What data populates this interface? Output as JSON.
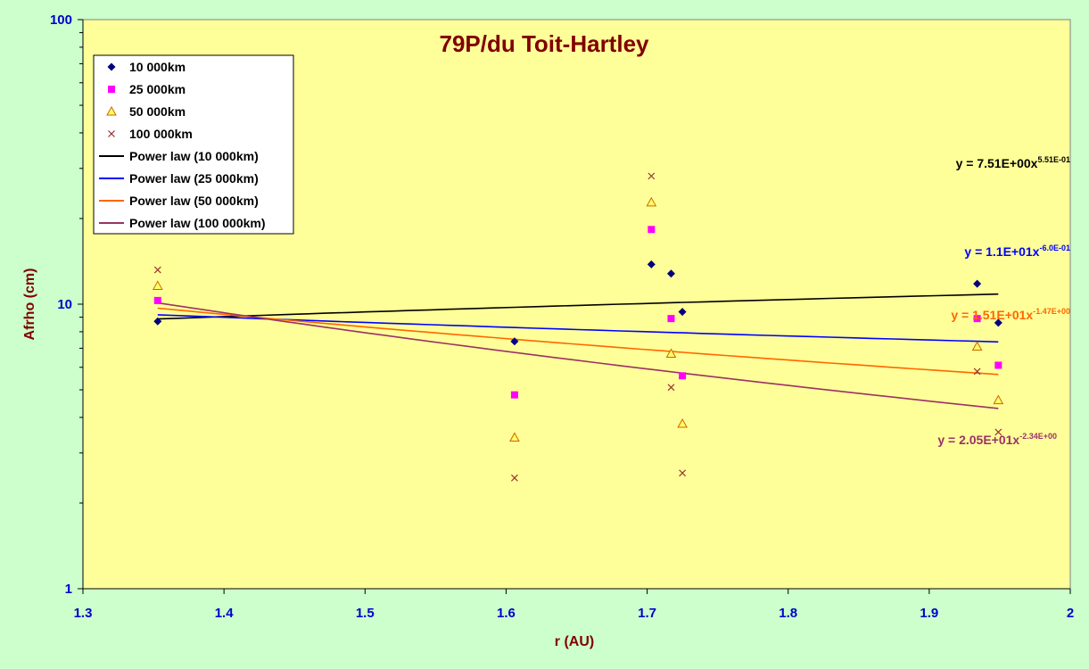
{
  "chart_data": {
    "type": "scatter",
    "title": "79P/du Toit-Hartley",
    "xlabel": "r (AU)",
    "ylabel": "Afrho (cm)",
    "xlim": [
      1.3,
      2.0
    ],
    "ylim": [
      1,
      100
    ],
    "y_scale": "log",
    "x_ticks": [
      "1.3",
      "1.4",
      "1.5",
      "1.6",
      "1.7",
      "1.8",
      "1.9",
      "2"
    ],
    "y_ticks": [
      "1",
      "10",
      "100"
    ],
    "grid": false,
    "legend_position": "top-left",
    "plot_background": "#ffff99",
    "page_background": "#ccffcc",
    "series": [
      {
        "name": "10 000km",
        "marker": "diamond",
        "color": "#000080",
        "points": [
          [
            1.353,
            8.7
          ],
          [
            1.606,
            7.4
          ],
          [
            1.703,
            13.8
          ],
          [
            1.717,
            12.8
          ],
          [
            1.725,
            9.4
          ],
          [
            1.934,
            11.8
          ],
          [
            1.949,
            8.6
          ]
        ]
      },
      {
        "name": "25 000km",
        "marker": "square",
        "color": "#ff00ff",
        "points": [
          [
            1.353,
            10.3
          ],
          [
            1.606,
            4.8
          ],
          [
            1.703,
            18.3
          ],
          [
            1.717,
            8.9
          ],
          [
            1.725,
            5.6
          ],
          [
            1.934,
            8.9
          ],
          [
            1.949,
            6.1
          ]
        ]
      },
      {
        "name": "50 000km",
        "marker": "triangle",
        "color": "#cc6600",
        "fill": "#ffff66",
        "points": [
          [
            1.353,
            11.6
          ],
          [
            1.606,
            3.4
          ],
          [
            1.703,
            22.8
          ],
          [
            1.717,
            6.7
          ],
          [
            1.725,
            3.8
          ],
          [
            1.934,
            7.1
          ],
          [
            1.949,
            4.6
          ]
        ]
      },
      {
        "name": "100 000km",
        "marker": "x",
        "color": "#993333",
        "points": [
          [
            1.353,
            13.2
          ],
          [
            1.606,
            2.45
          ],
          [
            1.703,
            28.2
          ],
          [
            1.717,
            5.1
          ],
          [
            1.725,
            2.55
          ],
          [
            1.934,
            5.8
          ],
          [
            1.949,
            3.55
          ]
        ]
      }
    ],
    "trendlines": [
      {
        "name": "Power law (10 000km)",
        "color": "#000000",
        "a": 7.51,
        "b": 0.551,
        "x_range": [
          1.353,
          1.949
        ],
        "eq_main": "y = 7.51E+00x",
        "eq_exp": "5.51E-01",
        "eq_color": "#000000"
      },
      {
        "name": "Power law (25 000km)",
        "color": "#0000ff",
        "a": 11.0,
        "b": -0.6,
        "x_range": [
          1.353,
          1.949
        ],
        "eq_main": "y = 1.1E+01x",
        "eq_exp": "-6.0E-01",
        "eq_color": "#0000ff"
      },
      {
        "name": "Power law (50 000km)",
        "color": "#ff6600",
        "a": 15.1,
        "b": -1.47,
        "x_range": [
          1.353,
          1.949
        ],
        "eq_main": "y = 1.51E+01x",
        "eq_exp": "-1.47E+00",
        "eq_color": "#ff6600"
      },
      {
        "name": "Power law (100 000km)",
        "color": "#993366",
        "a": 20.5,
        "b": -2.34,
        "x_range": [
          1.353,
          1.949
        ],
        "eq_main": "y = 2.05E+01x",
        "eq_exp": "-2.34E+00",
        "eq_color": "#993366"
      }
    ]
  }
}
